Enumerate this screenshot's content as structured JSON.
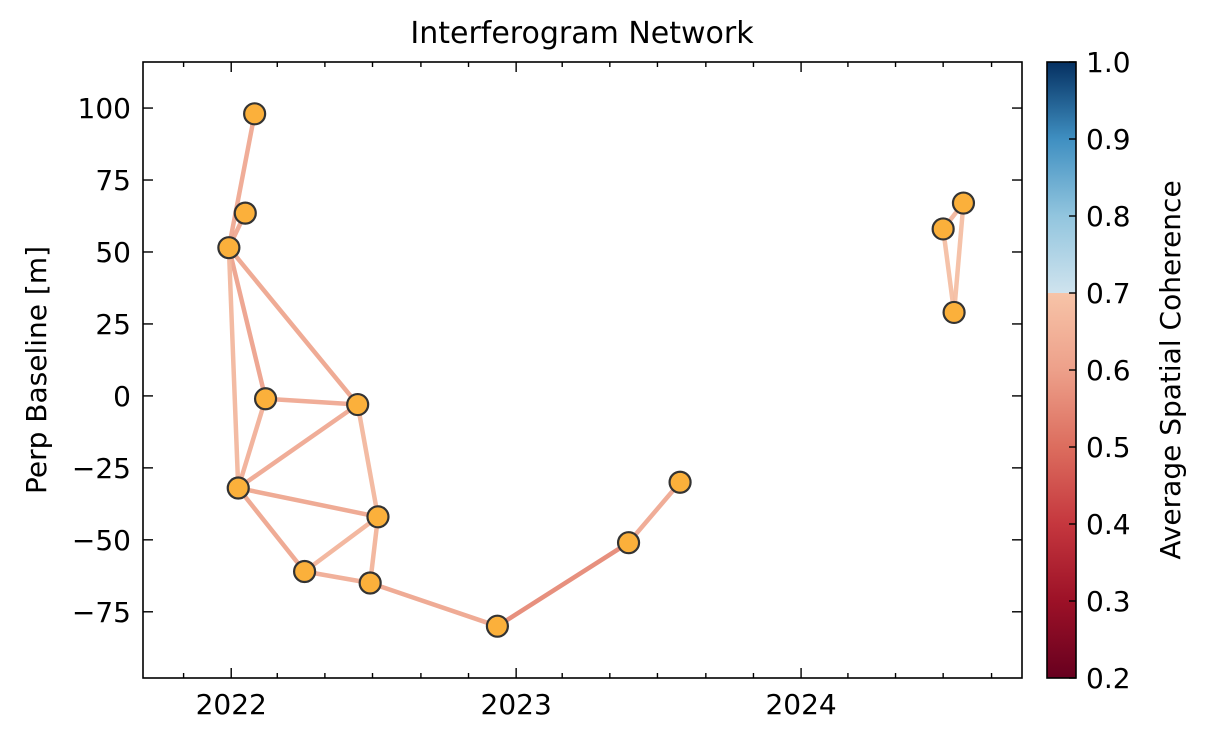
{
  "chart_data": {
    "type": "scatter",
    "title": "Interferogram Network",
    "xlabel": "",
    "ylabel": "Perp Baseline [m]",
    "x_type": "date",
    "xlim": [
      "2021-09-10",
      "2024-10-10"
    ],
    "ylim": [
      -98,
      116
    ],
    "x_ticks": [
      {
        "date": "2022-01-01",
        "label": "2022"
      },
      {
        "date": "2023-01-01",
        "label": "2023"
      },
      {
        "date": "2024-01-01",
        "label": "2024"
      }
    ],
    "y_ticks": [
      {
        "value": 100,
        "label": "100"
      },
      {
        "value": 75,
        "label": "75"
      },
      {
        "value": 50,
        "label": "50"
      },
      {
        "value": 25,
        "label": "25"
      },
      {
        "value": 0,
        "label": "0"
      },
      {
        "value": -25,
        "label": "−25"
      },
      {
        "value": -50,
        "label": "−50"
      },
      {
        "value": -75,
        "label": "−75"
      }
    ],
    "acquisitions": [
      {
        "id": "a1",
        "date": "2021-12-29",
        "perp_baseline": 51.5
      },
      {
        "id": "a2",
        "date": "2022-01-19",
        "perp_baseline": 63.5
      },
      {
        "id": "a3",
        "date": "2022-01-31",
        "perp_baseline": 98
      },
      {
        "id": "a4",
        "date": "2022-02-14",
        "perp_baseline": -1
      },
      {
        "id": "a5",
        "date": "2022-01-10",
        "perp_baseline": -32
      },
      {
        "id": "a6",
        "date": "2022-04-05",
        "perp_baseline": -61
      },
      {
        "id": "a7",
        "date": "2022-06-12",
        "perp_baseline": -3
      },
      {
        "id": "a8",
        "date": "2022-06-28",
        "perp_baseline": -65
      },
      {
        "id": "a9",
        "date": "2022-07-08",
        "perp_baseline": -42
      },
      {
        "id": "a10",
        "date": "2022-12-08",
        "perp_baseline": -80
      },
      {
        "id": "a11",
        "date": "2023-05-25",
        "perp_baseline": -51
      },
      {
        "id": "a12",
        "date": "2023-07-30",
        "perp_baseline": -30
      },
      {
        "id": "a13",
        "date": "2024-07-01",
        "perp_baseline": 58
      },
      {
        "id": "a14",
        "date": "2024-07-15",
        "perp_baseline": 29
      },
      {
        "id": "a15",
        "date": "2024-07-27",
        "perp_baseline": 67
      }
    ],
    "interferograms": [
      {
        "from": "a1",
        "to": "a3",
        "coherence": 0.62
      },
      {
        "from": "a1",
        "to": "a2",
        "coherence": 0.62
      },
      {
        "from": "a1",
        "to": "a4",
        "coherence": 0.6
      },
      {
        "from": "a1",
        "to": "a7",
        "coherence": 0.61
      },
      {
        "from": "a1",
        "to": "a5",
        "coherence": 0.66
      },
      {
        "from": "a4",
        "to": "a5",
        "coherence": 0.64
      },
      {
        "from": "a4",
        "to": "a7",
        "coherence": 0.62
      },
      {
        "from": "a5",
        "to": "a7",
        "coherence": 0.62
      },
      {
        "from": "a5",
        "to": "a9",
        "coherence": 0.61
      },
      {
        "from": "a5",
        "to": "a6",
        "coherence": 0.61
      },
      {
        "from": "a7",
        "to": "a9",
        "coherence": 0.66
      },
      {
        "from": "a6",
        "to": "a9",
        "coherence": 0.65
      },
      {
        "from": "a6",
        "to": "a8",
        "coherence": 0.63
      },
      {
        "from": "a9",
        "to": "a8",
        "coherence": 0.65
      },
      {
        "from": "a8",
        "to": "a10",
        "coherence": 0.61
      },
      {
        "from": "a10",
        "to": "a11",
        "coherence": 0.55
      },
      {
        "from": "a11",
        "to": "a12",
        "coherence": 0.62
      },
      {
        "from": "a13",
        "to": "a14",
        "coherence": 0.68
      },
      {
        "from": "a14",
        "to": "a15",
        "coherence": 0.68
      },
      {
        "from": "a13",
        "to": "a15",
        "coherence": 0.66
      }
    ],
    "colorbar": {
      "label": "Average Spatial Coherence",
      "range": [
        0.2,
        1.0
      ],
      "ticks": [
        "0.2",
        "0.3",
        "0.4",
        "0.5",
        "0.6",
        "0.7",
        "0.8",
        "0.9",
        "1.0"
      ],
      "colormap": "RdBu",
      "stops": [
        {
          "v": 0.2,
          "color": "#67001f"
        },
        {
          "v": 0.3,
          "color": "#9c1127"
        },
        {
          "v": 0.4,
          "color": "#c5373e"
        },
        {
          "v": 0.5,
          "color": "#dc6d5e"
        },
        {
          "v": 0.6,
          "color": "#eda08a"
        },
        {
          "v": 0.7,
          "color": "#f7c4a8"
        },
        {
          "v": 0.7001,
          "color": "#cfe3ee"
        },
        {
          "v": 0.8,
          "color": "#92c5de"
        },
        {
          "v": 0.9,
          "color": "#3f8fc1"
        },
        {
          "v": 1.0,
          "color": "#053061"
        }
      ]
    },
    "marker": {
      "fill": "#fbb03b",
      "edge": "#333333"
    },
    "grid": false,
    "legend": "none"
  }
}
